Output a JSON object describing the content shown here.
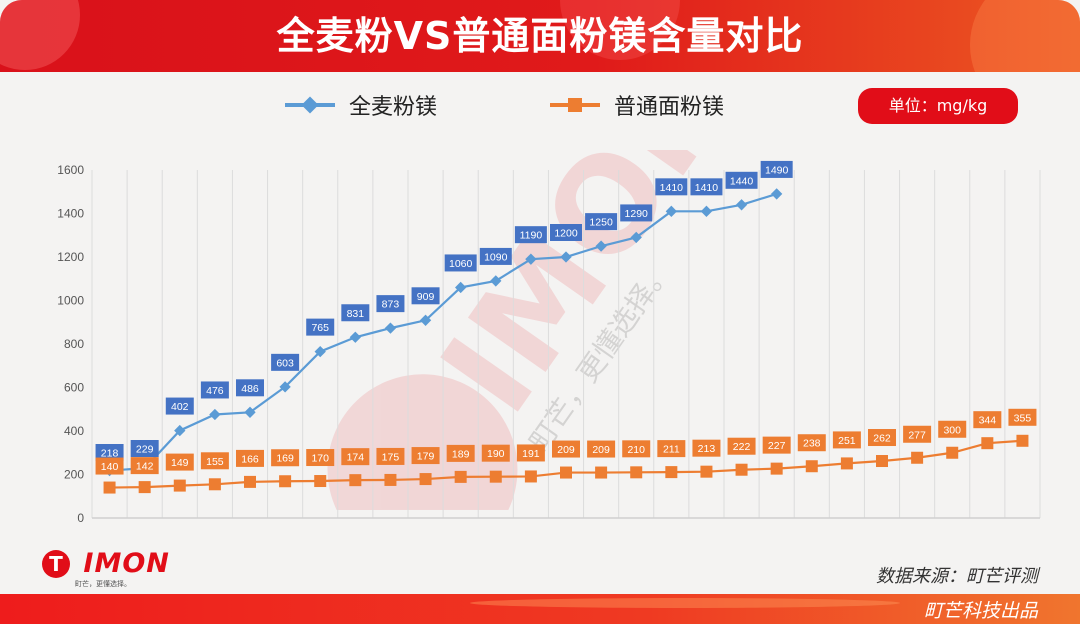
{
  "header": {
    "title": "全麦粉VS普通面粉镁含量对比"
  },
  "legend": {
    "items": [
      {
        "label": "全麦粉镁",
        "color": "#5b9bd5",
        "marker": "diamond"
      },
      {
        "label": "普通面粉镁",
        "color": "#ed7d31",
        "marker": "square"
      }
    ]
  },
  "unit_badge": {
    "label": "单位：mg/kg",
    "color": "#e10d18"
  },
  "watermark": {
    "logo_text": "TIMON",
    "slogan": "町芒，更懂选择。"
  },
  "footer": {
    "logo_text": "TIMON",
    "logo_slogan": "町芒，更懂选择。",
    "source": "数据来源：町芒评测",
    "producer": "町芒科技出品"
  },
  "chart_data": {
    "type": "line",
    "title": "全麦粉VS普通面粉镁含量对比",
    "xlabel": "",
    "ylabel": "",
    "unit": "mg/kg",
    "ylim": [
      0,
      1600
    ],
    "yticks": [
      0,
      200,
      400,
      600,
      800,
      1000,
      1200,
      1400,
      1600
    ],
    "grid": "vertical",
    "legend_position": "top",
    "x": [
      1,
      2,
      3,
      4,
      5,
      6,
      7,
      8,
      9,
      10,
      11,
      12,
      13,
      14,
      15,
      16,
      17,
      18,
      19,
      20,
      21,
      22,
      23,
      24,
      25,
      26,
      27
    ],
    "series": [
      {
        "name": "全麦粉镁",
        "color": "#5b9bd5",
        "label_color": "#4472c4",
        "marker": "diamond",
        "values": [
          218,
          229,
          402,
          476,
          486,
          603,
          765,
          831,
          873,
          909,
          1060,
          1090,
          1190,
          1200,
          1250,
          1290,
          1410,
          1410,
          1440,
          1490
        ]
      },
      {
        "name": "普通面粉镁",
        "color": "#ed7d31",
        "label_color": "#ed7d31",
        "marker": "square",
        "values": [
          140,
          142,
          149,
          155,
          166,
          169,
          170,
          174,
          175,
          179,
          189,
          190,
          191,
          209,
          209,
          210,
          211,
          213,
          222,
          227,
          238,
          251,
          262,
          277,
          300,
          344,
          355
        ]
      }
    ]
  }
}
